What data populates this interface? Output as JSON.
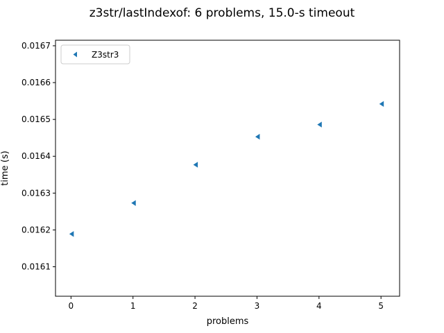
{
  "chart_data": {
    "type": "scatter",
    "title": "z3str/lastIndexof: 6 problems, 15.0-s timeout",
    "xlabel": "problems",
    "ylabel": "time (s)",
    "xlim": [
      -0.25,
      5.3
    ],
    "ylim": [
      0.01602,
      0.016715
    ],
    "x_ticks": [
      "0",
      "1",
      "2",
      "3",
      "4",
      "5"
    ],
    "x_tick_values": [
      0,
      1,
      2,
      3,
      4,
      5
    ],
    "y_ticks": [
      "0.0161",
      "0.0162",
      "0.0163",
      "0.0164",
      "0.0165",
      "0.0166",
      "0.0167"
    ],
    "y_tick_values": [
      0.0161,
      0.0162,
      0.0163,
      0.0164,
      0.0165,
      0.0166,
      0.0167
    ],
    "legend_position": "top-left",
    "grid": false,
    "series": [
      {
        "name": "Z3str3",
        "marker": "triangle-left",
        "color": "#1f77b4",
        "x": [
          0,
          1,
          2,
          3,
          4,
          5
        ],
        "y": [
          0.016189,
          0.016273,
          0.016377,
          0.016453,
          0.016486,
          0.016542
        ]
      }
    ]
  }
}
